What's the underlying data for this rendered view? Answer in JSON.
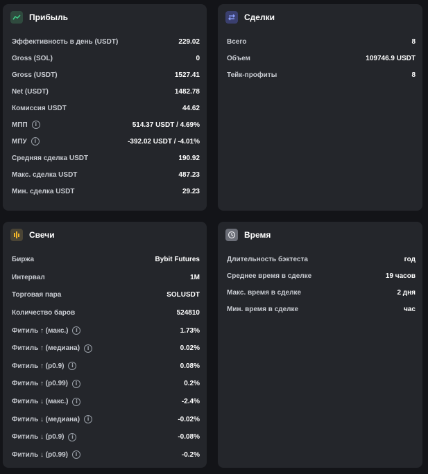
{
  "profit": {
    "title": "Прибыль",
    "icon": "trend-line-icon",
    "rows": [
      {
        "label": "Эффективность в день (USDT)",
        "value": "229.02",
        "info": false
      },
      {
        "label": "Gross (SOL)",
        "value": "0",
        "info": false
      },
      {
        "label": "Gross (USDT)",
        "value": "1527.41",
        "info": false
      },
      {
        "label": "Net (USDT)",
        "value": "1482.78",
        "info": false
      },
      {
        "label": "Комиссия USDT",
        "value": "44.62",
        "info": false
      },
      {
        "label": "МПП",
        "value": "514.37 USDT / 4.69%",
        "info": true
      },
      {
        "label": "МПУ",
        "value": "-392.02 USDT / -4.01%",
        "info": true
      },
      {
        "label": "Средняя сделка USDT",
        "value": "190.92",
        "info": false
      },
      {
        "label": "Макс. сделка USDT",
        "value": "487.23",
        "info": false
      },
      {
        "label": "Мин. сделка USDT",
        "value": "29.23",
        "info": false
      }
    ]
  },
  "deals": {
    "title": "Сделки",
    "icon": "swap-arrows-icon",
    "rows": [
      {
        "label": "Всего",
        "value": "8"
      },
      {
        "label": "Объем",
        "value": "109746.9 USDT"
      },
      {
        "label": "Тейк-профиты",
        "value": "8"
      }
    ]
  },
  "candles": {
    "title": "Свечи",
    "icon": "candles-icon",
    "rows": [
      {
        "label": "Биржа",
        "value": "Bybit Futures",
        "info": false
      },
      {
        "label": "Интервал",
        "value": "1M",
        "info": false
      },
      {
        "label": "Торговая пара",
        "value": "SOLUSDT",
        "info": false
      },
      {
        "label": "Количество баров",
        "value": "524810",
        "info": false
      },
      {
        "label": "Фитиль ↑ (макс.)",
        "value": "1.73%",
        "info": true
      },
      {
        "label": "Фитиль ↑ (медиана)",
        "value": "0.02%",
        "info": true
      },
      {
        "label": "Фитиль ↑ (p0.9)",
        "value": "0.08%",
        "info": true
      },
      {
        "label": "Фитиль ↑ (p0.99)",
        "value": "0.2%",
        "info": true
      },
      {
        "label": "Фитиль ↓ (макс.)",
        "value": "-2.4%",
        "info": true
      },
      {
        "label": "Фитиль ↓ (медиана)",
        "value": "-0.02%",
        "info": true
      },
      {
        "label": "Фитиль ↓ (p0.9)",
        "value": "-0.08%",
        "info": true
      },
      {
        "label": "Фитиль ↓ (p0.99)",
        "value": "-0.2%",
        "info": true
      }
    ]
  },
  "time": {
    "title": "Время",
    "icon": "clock-icon",
    "rows": [
      {
        "label": "Длительность бэктеста",
        "value": "год"
      },
      {
        "label": "Среднее время в сделке",
        "value": "19 часов"
      },
      {
        "label": "Макс. время в сделке",
        "value": "2 дня"
      },
      {
        "label": "Мин. время в сделке",
        "value": "час"
      }
    ]
  },
  "colors": {
    "background": "#131418",
    "card": "#24262b",
    "profit_icon_bg": "#2f4a3e",
    "deals_icon_bg": "#3a3f6e",
    "candles_icon_bg": "#4a4435",
    "time_icon_bg": "#6c6f78"
  }
}
